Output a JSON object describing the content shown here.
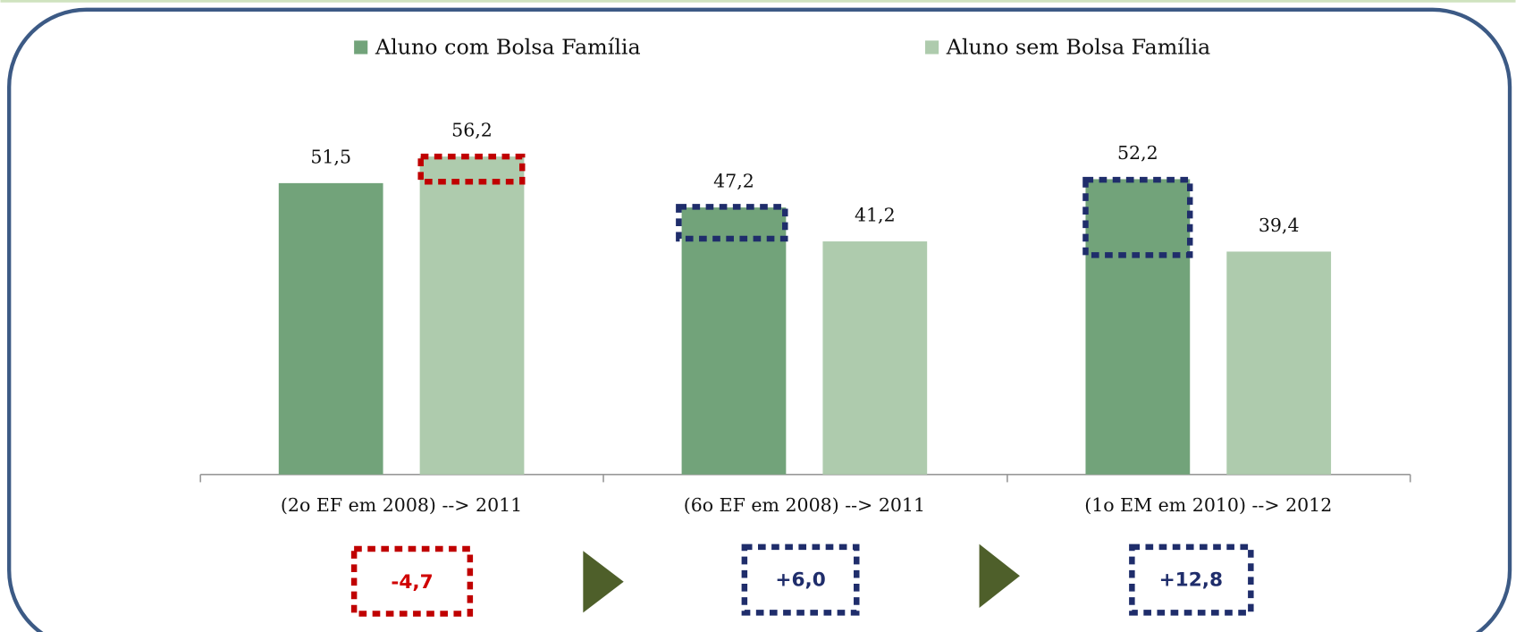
{
  "chart_data": {
    "type": "bar",
    "categories": [
      "(2o EF em 2008) --> 2011",
      "(6o EF em 2008) --> 2011",
      "(1o EM em 2010) --> 2012"
    ],
    "series": [
      {
        "name": "Aluno com Bolsa Família",
        "color": "#72a37a",
        "values": [
          51.5,
          47.2,
          52.2
        ],
        "value_labels": [
          "51,5",
          "47,2",
          "52,2"
        ]
      },
      {
        "name": "Aluno sem Bolsa Família",
        "color": "#aecbad",
        "values": [
          56.2,
          41.2,
          39.4
        ],
        "value_labels": [
          "56,2",
          "41,2",
          "39,4"
        ]
      }
    ],
    "annotations": [
      "-4,7",
      "+6,0",
      "+12,8"
    ],
    "legend": "top"
  }
}
